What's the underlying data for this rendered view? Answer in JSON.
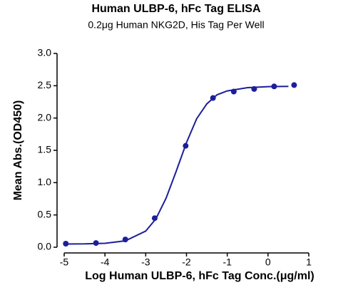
{
  "chart_data": {
    "type": "scatter",
    "title": "Human ULBP-6, hFc Tag ELISA",
    "subtitle": "0.2μg Human NKG2D, His Tag Per Well",
    "x_label": "Log Human ULBP-6, hFc Tag Conc.(μg/ml)",
    "y_label": "Mean Abs.(OD450)",
    "xlim": [
      -5,
      1
    ],
    "xticks": [
      -5,
      -4,
      -3,
      -2,
      -1,
      0,
      1
    ],
    "ylim": [
      0,
      3
    ],
    "yticks": [
      {
        "value": 0,
        "label": "0.0"
      },
      {
        "value": 0.5,
        "label": "0.5"
      },
      {
        "value": 1,
        "label": "1.0"
      },
      {
        "value": 1.5,
        "label": "1.5"
      },
      {
        "value": 2,
        "label": "2.0"
      },
      {
        "value": 2.5,
        "label": "2.5"
      },
      {
        "value": 3,
        "label": "3.0"
      }
    ],
    "color": "#1c1f9a",
    "points": {
      "x": [
        -4.96,
        -4.22,
        -3.5,
        -2.78,
        -2.02,
        -1.35,
        -0.84,
        -0.34,
        0.15,
        0.64
      ],
      "values": [
        0.055,
        0.065,
        0.12,
        0.45,
        1.57,
        2.31,
        2.41,
        2.45,
        2.49,
        2.51
      ]
    },
    "curve": {
      "x": [
        -5,
        -4.5,
        -4,
        -3.5,
        -3,
        -2.75,
        -2.5,
        -2.25,
        -2,
        -1.75,
        -1.5,
        -1.25,
        -1,
        -0.5,
        0,
        0.5
      ],
      "values": [
        0.05,
        0.052,
        0.061,
        0.099,
        0.25,
        0.44,
        0.76,
        1.18,
        1.62,
        1.99,
        2.22,
        2.36,
        2.42,
        2.47,
        2.486,
        2.49
      ]
    }
  }
}
